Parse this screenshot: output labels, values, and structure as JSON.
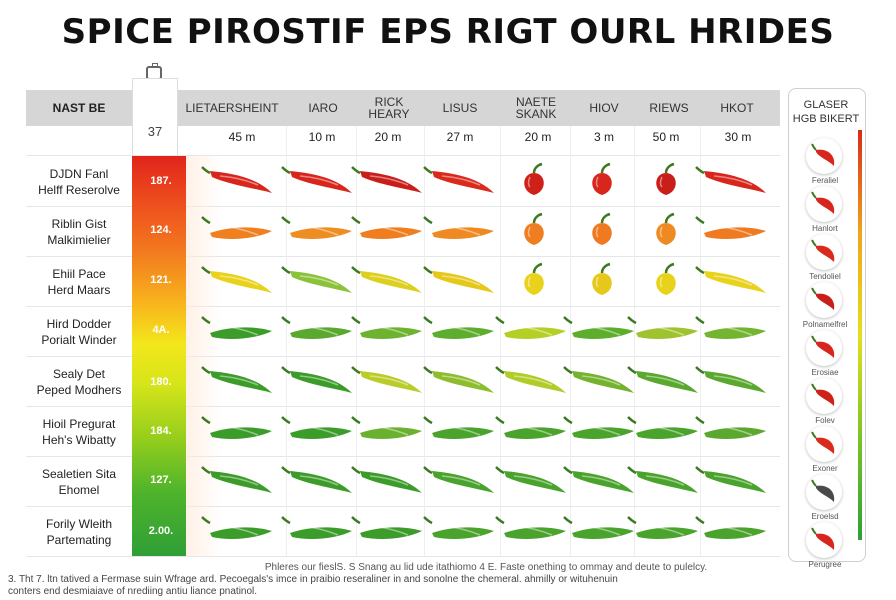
{
  "title": "SPICE PIROSTIF EPS RIGT OURL HRIDES",
  "scale_number": "37",
  "header": {
    "first": "NAST BE",
    "columns": [
      "LIETAERSHEINT",
      "IARO",
      "RICK HEARY",
      "LISUS",
      "NAETE SKANK",
      "HIOV",
      "RIEWS",
      "HKOT"
    ],
    "doses": [
      "45 m",
      "10 m",
      "20 m",
      "27 m",
      "20 m",
      "3 m",
      "50 m",
      "30 m"
    ]
  },
  "rows": [
    {
      "label1": "DJDN Fanl",
      "label2": "Helff Reserolve",
      "value": "187.",
      "color": "#d9261c"
    },
    {
      "label1": "Riblin Gist",
      "label2": "Malkimielier",
      "value": "124.",
      "color": "#f07d1f"
    },
    {
      "label1": "Ehiil Pace",
      "label2": "Herd Maars",
      "value": "121.",
      "color": "#f0d21b"
    },
    {
      "label1": "Hird Dodder",
      "label2": "Porialt Winder",
      "value": "4A.",
      "color": "#3b9c2a"
    },
    {
      "label1": "Sealy Det",
      "label2": "Peped Modhers",
      "value": "180.",
      "color": "#4aa82c"
    },
    {
      "label1": "Hioil Pregurat",
      "label2": "Heh's Wibatty",
      "value": "184.",
      "color": "#5cae2e"
    },
    {
      "label1": "Sealetien Sita",
      "label2": "Ehomel",
      "value": "127.",
      "color": "#53a92d"
    },
    {
      "label1": "Forily Wleith",
      "label2": "Partemating",
      "value": "2.00.",
      "color": "#4ba32c"
    }
  ],
  "right_panel": {
    "title1": "GLASER",
    "title2": "HGB BIKERT",
    "labels": [
      "Feraliel",
      "Hanlort",
      "Tendoliel",
      "Polnamelfrel",
      "Erosiae",
      "Folev",
      "Exoner",
      "Eroelsd",
      "Perugree"
    ]
  },
  "footnote1": "Phleres our fieslS. S Snang au lid ude itathiomo 4 E. Faste onething to ommay and deute to pulelcy.",
  "footnote2": "3. Tht 7. ltn tatived a Fermase suin Wfrage ard. Pecoegals's imce in praibio reseraliner in and sonolne the chemeral. ahmilly or wituhenuin conters end desmiaiave of nrediing antiu liance pnatinol."
}
